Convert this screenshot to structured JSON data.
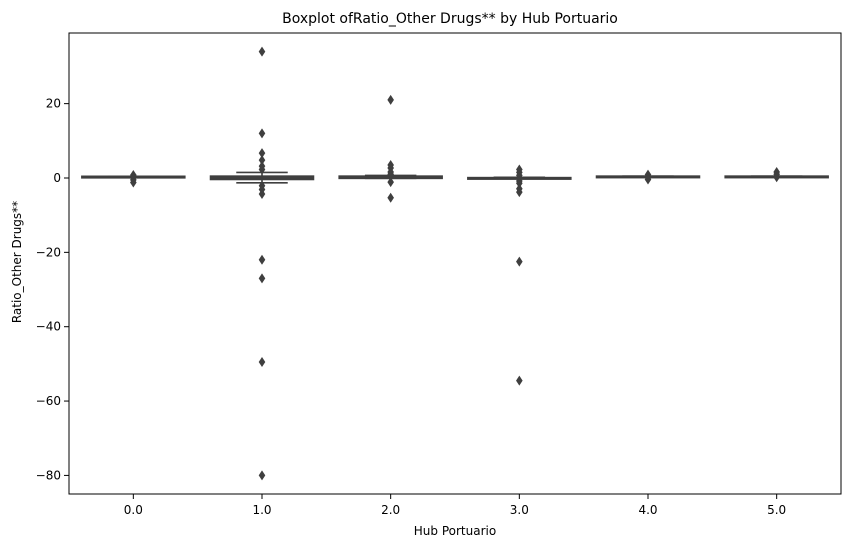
{
  "chart_data": {
    "type": "box",
    "title": "Boxplot ofRatio_Other Drugs** by Hub Portuario",
    "xlabel": "Hub Portuario",
    "ylabel": "Ratio_Other Drugs**",
    "ylim": [
      -85,
      39
    ],
    "yticks": [
      20,
      0,
      -20,
      -40,
      -60,
      -80
    ],
    "ytick_labels": [
      "20",
      "0",
      "−20",
      "−40",
      "−60",
      "−80"
    ],
    "categories": [
      "0.0",
      "1.0",
      "2.0",
      "3.0",
      "4.0",
      "5.0"
    ],
    "box_color": "#3f3f3f",
    "boxes": [
      {
        "category": "0.0",
        "whisker_low": 0.35,
        "q1": 0.35,
        "median": 0.4,
        "q3": 0.45,
        "whisker_high": 0.45,
        "outliers": [
          0.8,
          0.1,
          -0.5,
          -1.2
        ]
      },
      {
        "category": "1.0",
        "whisker_low": -1.3,
        "q1": -0.4,
        "median": 0.1,
        "q3": 0.5,
        "whisker_high": 1.5,
        "outliers": [
          34,
          12,
          6.7,
          4.8,
          3.2,
          2.3,
          -2.1,
          -3.1,
          -4.3,
          -22,
          -27,
          -49.5,
          -80
        ]
      },
      {
        "category": "2.0",
        "whisker_low": -0.1,
        "q1": -0.1,
        "median": 0.2,
        "q3": 0.5,
        "whisker_high": 0.7,
        "outliers": [
          21,
          3.5,
          2.7,
          1.6,
          1.0,
          -1.1,
          -5.3
        ]
      },
      {
        "category": "3.0",
        "whisker_low": -0.2,
        "q1": -0.2,
        "median": 0.0,
        "q3": 0.1,
        "whisker_high": 0.2,
        "outliers": [
          2.3,
          1.5,
          0.7,
          -0.8,
          -1.4,
          -2.9,
          -3.8,
          -22.5,
          -54.5
        ]
      },
      {
        "category": "4.0",
        "whisker_low": 0.3,
        "q1": 0.3,
        "median": 0.4,
        "q3": 0.5,
        "whisker_high": 0.5,
        "outliers": [
          0.9,
          0.1,
          -0.4
        ]
      },
      {
        "category": "5.0",
        "whisker_low": 0.4,
        "q1": 0.4,
        "median": 0.45,
        "q3": 0.5,
        "whisker_high": 0.5,
        "outliers": [
          1.6,
          1.0,
          0.2
        ]
      }
    ]
  }
}
